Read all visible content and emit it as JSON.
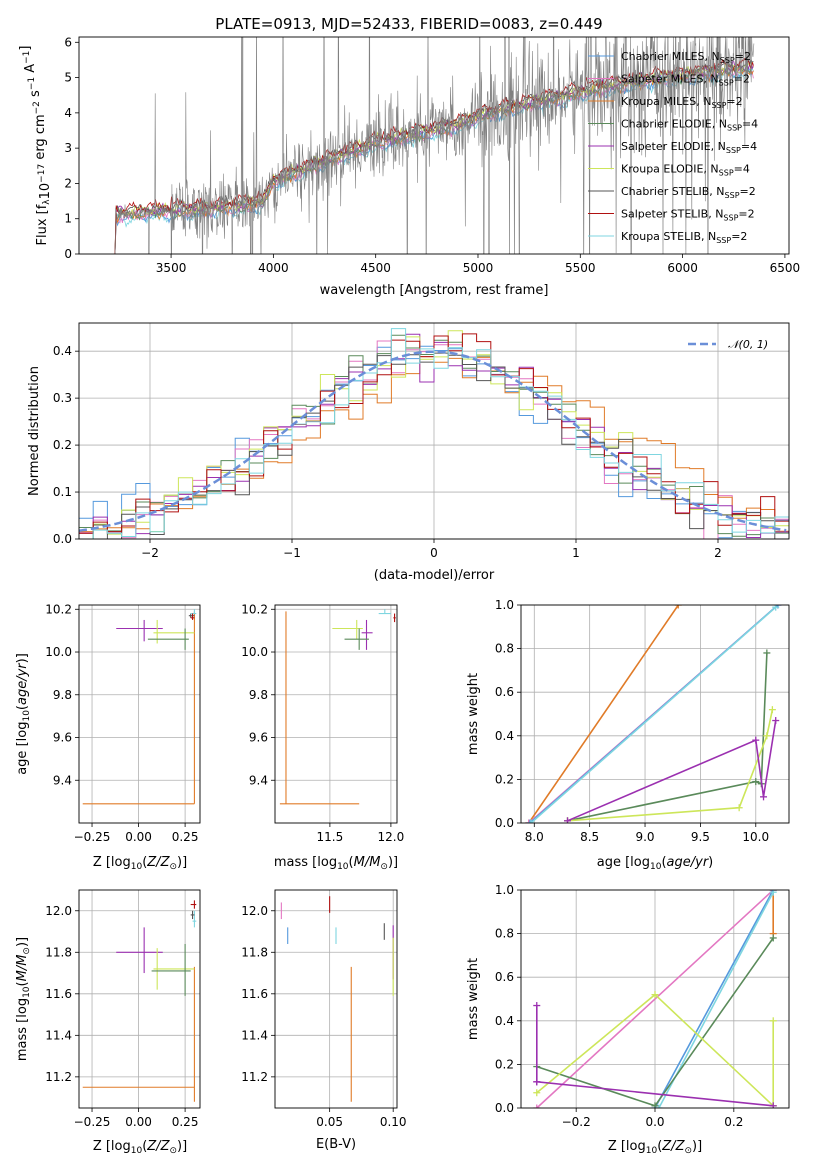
{
  "colors": {
    "chabrier_miles": "#5599dd",
    "salpeter_miles": "#e377c2",
    "kroupa_miles": "#e07b28",
    "chabrier_elodie": "#5a8a5a",
    "salpeter_elodie": "#9b30b0",
    "kroupa_elodie": "#cde65a",
    "chabrier_stelib": "#555555",
    "salpeter_stelib": "#b01010",
    "kroupa_stelib": "#7fd6e0",
    "data": "#808080",
    "normal_curve": "#6b8fd8",
    "grid": "#b0b0b0"
  },
  "legend_labels": [
    "Chabrier MILES, N",
    "Salpeter MILES, N",
    "Kroupa MILES, N",
    "Chabrier ELODIE, N",
    "Salpeter ELODIE, N",
    "Kroupa ELODIE, N",
    "Chabrier STELIB, N",
    "Salpeter STELIB, N",
    "Kroupa STELIB, N"
  ],
  "legend_sub": "SSP",
  "legend_nssp": [
    "=2",
    "=2",
    "=2",
    "=4",
    "=4",
    "=4",
    "=2",
    "=2",
    "=2"
  ],
  "chart_data": [
    {
      "id": "spectrum",
      "type": "line",
      "title": "PLATE=0913, MJD=52433, FIBERID=0083, z=0.449",
      "xlabel": "wavelength [Angstrom, rest frame]",
      "ylabel": "Flux [f",
      "xlim": [
        3050,
        6520
      ],
      "ylim": [
        0,
        6.15
      ],
      "xticks": [
        3500,
        4000,
        4500,
        5000,
        5500,
        6000,
        6500
      ],
      "yticks": [
        0,
        1,
        2,
        3,
        4,
        5,
        6
      ],
      "spectrum_range": [
        3220,
        6350
      ],
      "model_continuum": [
        [
          3220,
          1.12
        ],
        [
          3500,
          1.22
        ],
        [
          3600,
          1.25
        ],
        [
          3700,
          1.28
        ],
        [
          3800,
          1.35
        ],
        [
          3950,
          1.45
        ],
        [
          4000,
          2.05
        ],
        [
          4200,
          2.5
        ],
        [
          4500,
          3.15
        ],
        [
          4700,
          3.4
        ],
        [
          4900,
          3.65
        ],
        [
          5000,
          3.9
        ],
        [
          5200,
          4.2
        ],
        [
          5400,
          4.45
        ],
        [
          5600,
          4.7
        ],
        [
          5800,
          4.9
        ],
        [
          6000,
          5.05
        ],
        [
          6200,
          5.2
        ],
        [
          6350,
          5.25
        ]
      ],
      "grid": false,
      "legend_position": "upper-right"
    },
    {
      "id": "residuals",
      "type": "bar",
      "xlabel": "(data-model)/error",
      "ylabel": "Normed distribution",
      "xlim": [
        -2.5,
        2.5
      ],
      "ylim": [
        0,
        0.46
      ],
      "xticks": [
        -2,
        -1,
        0,
        1,
        2
      ],
      "yticks": [
        0.0,
        0.1,
        0.2,
        0.3,
        0.4
      ],
      "legend_label": "𝒩(0, 1)",
      "grid": true,
      "legend_position": "upper-right"
    },
    {
      "id": "z_age",
      "type": "scatter",
      "xlabel": "Z [log",
      "ylabel": "age  [log",
      "xlim": [
        -0.32,
        0.33
      ],
      "ylim": [
        9.2,
        10.22
      ],
      "xticks": [
        -0.25,
        0.0,
        0.25
      ],
      "yticks": [
        9.4,
        9.6,
        9.8,
        10.0,
        10.2
      ],
      "points": [
        {
          "s": "kroupa_miles",
          "x": 0.3,
          "y": 9.29,
          "xerr": [
            0.6,
            0.0
          ],
          "yerr": [
            0.0,
            0.9
          ]
        },
        {
          "s": "salpeter_elodie",
          "x": 0.03,
          "y": 10.11,
          "xerr": [
            0.15,
            0.1
          ],
          "yerr": [
            0.06,
            0.04
          ]
        },
        {
          "s": "kroupa_elodie",
          "x": 0.1,
          "y": 10.09,
          "xerr": [
            0.02,
            0.2
          ],
          "yerr": [
            0.05,
            0.06
          ]
        },
        {
          "s": "chabrier_elodie",
          "x": 0.25,
          "y": 10.06,
          "xerr": [
            0.2,
            0.02
          ],
          "yerr": [
            0.05,
            0.05
          ]
        },
        {
          "s": "chabrier_stelib",
          "x": 0.28,
          "y": 10.17,
          "xerr": [
            0.01,
            0.02
          ],
          "yerr": [
            0.01,
            0.01
          ]
        },
        {
          "s": "kroupa_stelib",
          "x": 0.3,
          "y": 10.18,
          "xerr": [
            0.02,
            0.01
          ],
          "yerr": [
            0.0,
            0.02
          ]
        },
        {
          "s": "salpeter_stelib",
          "x": 0.29,
          "y": 10.16,
          "xerr": [
            0.01,
            0.01
          ],
          "yerr": [
            0.01,
            0.02
          ]
        }
      ]
    },
    {
      "id": "mass_age",
      "type": "scatter",
      "xlabel": "mass [log",
      "ylabel": "",
      "xlim": [
        11.05,
        12.05
      ],
      "ylim": [
        9.2,
        10.22
      ],
      "xticks": [
        11.5,
        12.0
      ],
      "yticks": [
        9.4,
        9.6,
        9.8,
        10.0,
        10.2
      ],
      "points": [
        {
          "s": "kroupa_miles",
          "x": 11.14,
          "y": 9.29,
          "xerr": [
            0.05,
            0.6
          ],
          "yerr": [
            0.0,
            0.9
          ]
        },
        {
          "s": "kroupa_elodie",
          "x": 11.72,
          "y": 10.11,
          "xerr": [
            0.2,
            0.05
          ],
          "yerr": [
            0.05,
            0.04
          ]
        },
        {
          "s": "salpeter_elodie",
          "x": 11.8,
          "y": 10.09,
          "xerr": [
            0.04,
            0.05
          ],
          "yerr": [
            0.08,
            0.06
          ]
        },
        {
          "s": "chabrier_elodie",
          "x": 11.74,
          "y": 10.06,
          "xerr": [
            0.12,
            0.08
          ],
          "yerr": [
            0.05,
            0.05
          ]
        },
        {
          "s": "salpeter_stelib",
          "x": 12.03,
          "y": 10.16,
          "xerr": [
            0.01,
            0.01
          ],
          "yerr": [
            0.02,
            0.02
          ]
        },
        {
          "s": "kroupa_stelib",
          "x": 11.95,
          "y": 10.18,
          "xerr": [
            0.05,
            0.05
          ],
          "yerr": [
            0.0,
            0.02
          ]
        }
      ]
    },
    {
      "id": "age_weight",
      "type": "line",
      "xlabel": "age  [log",
      "ylabel": "mass weight",
      "xlim": [
        7.88,
        10.3
      ],
      "ylim": [
        0,
        1.0
      ],
      "xticks": [
        8.0,
        8.5,
        9.0,
        9.5,
        10.0
      ],
      "yticks": [
        0.0,
        0.2,
        0.4,
        0.6,
        0.8,
        1.0
      ],
      "grid": true,
      "series": [
        {
          "s": "kroupa_miles",
          "x": [
            7.95,
            9.3
          ],
          "y": [
            0.0,
            1.0
          ]
        },
        {
          "s": "salpeter_miles",
          "x": [
            7.95,
            10.2
          ],
          "y": [
            0.0,
            1.0
          ]
        },
        {
          "s": "chabrier_miles",
          "x": [
            7.96,
            10.2
          ],
          "y": [
            0.0,
            1.0
          ]
        },
        {
          "s": "kroupa_stelib",
          "x": [
            7.97,
            10.18
          ],
          "y": [
            0.0,
            0.99
          ]
        },
        {
          "s": "chabrier_elodie",
          "x": [
            8.3,
            10.0,
            10.05,
            10.1
          ],
          "y": [
            0.01,
            0.19,
            0.18,
            0.78
          ]
        },
        {
          "s": "kroupa_elodie",
          "x": [
            8.3,
            9.85,
            10.1,
            10.15
          ],
          "y": [
            0.01,
            0.07,
            0.4,
            0.52
          ]
        },
        {
          "s": "salpeter_elodie",
          "x": [
            8.3,
            10.0,
            10.07,
            10.18
          ],
          "y": [
            0.01,
            0.38,
            0.12,
            0.47
          ]
        }
      ]
    },
    {
      "id": "z_mass",
      "type": "scatter",
      "xlabel": "Z [log",
      "ylabel": "mass [log",
      "xlim": [
        -0.32,
        0.33
      ],
      "ylim": [
        11.05,
        12.1
      ],
      "xticks": [
        -0.25,
        0.0,
        0.25
      ],
      "yticks": [
        11.2,
        11.4,
        11.6,
        11.8,
        12.0
      ],
      "points": [
        {
          "s": "kroupa_miles",
          "x": 0.3,
          "y": 11.15,
          "xerr": [
            0.6,
            0.0
          ],
          "yerr": [
            0.07,
            0.58
          ]
        },
        {
          "s": "salpeter_elodie",
          "x": 0.03,
          "y": 11.8,
          "xerr": [
            0.15,
            0.1
          ],
          "yerr": [
            0.1,
            0.12
          ]
        },
        {
          "s": "kroupa_elodie",
          "x": 0.1,
          "y": 11.72,
          "xerr": [
            0.02,
            0.2
          ],
          "yerr": [
            0.1,
            0.1
          ]
        },
        {
          "s": "chabrier_elodie",
          "x": 0.25,
          "y": 11.71,
          "xerr": [
            0.18,
            0.03
          ],
          "yerr": [
            0.12,
            0.13
          ]
        },
        {
          "s": "salpeter_stelib",
          "x": 0.3,
          "y": 12.03,
          "xerr": [
            0.02,
            0.01
          ],
          "yerr": [
            0.02,
            0.02
          ]
        },
        {
          "s": "kroupa_stelib",
          "x": 0.3,
          "y": 11.95,
          "xerr": [
            0.01,
            0.01
          ],
          "yerr": [
            0.03,
            0.05
          ]
        },
        {
          "s": "chabrier_stelib",
          "x": 0.29,
          "y": 11.98,
          "xerr": [
            0.01,
            0.01
          ],
          "yerr": [
            0.02,
            0.02
          ]
        }
      ]
    },
    {
      "id": "ebv_mass",
      "type": "scatter",
      "xlabel": "E(B-V)",
      "ylabel": "",
      "xlim": [
        0.007,
        0.103
      ],
      "ylim": [
        11.05,
        12.1
      ],
      "xticks": [
        0.0,
        0.05,
        0.1
      ],
      "yticks": [
        11.2,
        11.4,
        11.6,
        11.8,
        12.0
      ],
      "points": [
        {
          "s": "salpeter_miles",
          "x": 0.012,
          "y": 12.0,
          "xerr": [
            0,
            0
          ],
          "yerr": [
            0.04,
            0.04
          ]
        },
        {
          "s": "chabrier_miles",
          "x": 0.017,
          "y": 11.88,
          "xerr": [
            0,
            0
          ],
          "yerr": [
            0.04,
            0.04
          ]
        },
        {
          "s": "salpeter_stelib",
          "x": 0.05,
          "y": 12.03,
          "xerr": [
            0,
            0
          ],
          "yerr": [
            0.04,
            0.04
          ]
        },
        {
          "s": "kroupa_stelib",
          "x": 0.055,
          "y": 11.88,
          "xerr": [
            0,
            0
          ],
          "yerr": [
            0.04,
            0.04
          ]
        },
        {
          "s": "kroupa_miles",
          "x": 0.067,
          "y": 11.4,
          "xerr": [
            0,
            0
          ],
          "yerr": [
            0.32,
            0.33
          ]
        },
        {
          "s": "chabrier_stelib",
          "x": 0.093,
          "y": 11.9,
          "xerr": [
            0,
            0
          ],
          "yerr": [
            0.04,
            0.04
          ]
        },
        {
          "s": "salpeter_elodie",
          "x": 0.1,
          "y": 11.8,
          "xerr": [
            0,
            0
          ],
          "yerr": [
            0.13,
            0.13
          ]
        },
        {
          "s": "kroupa_elodie",
          "x": 0.1,
          "y": 11.72,
          "xerr": [
            0,
            0
          ],
          "yerr": [
            0.13,
            0.15
          ]
        }
      ]
    },
    {
      "id": "z_weight",
      "type": "line",
      "xlabel": "Z [log",
      "ylabel": "mass weight",
      "xlim": [
        -0.34,
        0.34
      ],
      "ylim": [
        0,
        1.0
      ],
      "xticks": [
        -0.2,
        0.0,
        0.2
      ],
      "yticks": [
        0.0,
        0.2,
        0.4,
        0.6,
        0.8,
        1.0
      ],
      "grid": true,
      "series": [
        {
          "s": "kroupa_miles",
          "x": [
            0.3,
            0.3
          ],
          "y": [
            1.0,
            0.8
          ]
        },
        {
          "s": "salpeter_miles",
          "x": [
            -0.3,
            0.3
          ],
          "y": [
            0.0,
            1.0
          ]
        },
        {
          "s": "chabrier_miles",
          "x": [
            0.0,
            0.3
          ],
          "y": [
            0.0,
            1.0
          ]
        },
        {
          "s": "kroupa_stelib",
          "x": [
            0.01,
            0.3
          ],
          "y": [
            0.0,
            0.99
          ]
        },
        {
          "s": "chabrier_elodie",
          "x": [
            -0.3,
            0.0,
            0.3
          ],
          "y": [
            0.19,
            0.01,
            0.78
          ]
        },
        {
          "s": "kroupa_elodie",
          "x": [
            -0.3,
            0.0,
            0.3,
            0.3,
            0.3
          ],
          "y": [
            0.07,
            0.52,
            0.01,
            0.4,
            0.01
          ]
        },
        {
          "s": "salpeter_elodie",
          "x": [
            -0.3,
            -0.3,
            -0.3,
            0.3
          ],
          "y": [
            0.47,
            0.12,
            0.12,
            0.01
          ]
        }
      ]
    }
  ]
}
